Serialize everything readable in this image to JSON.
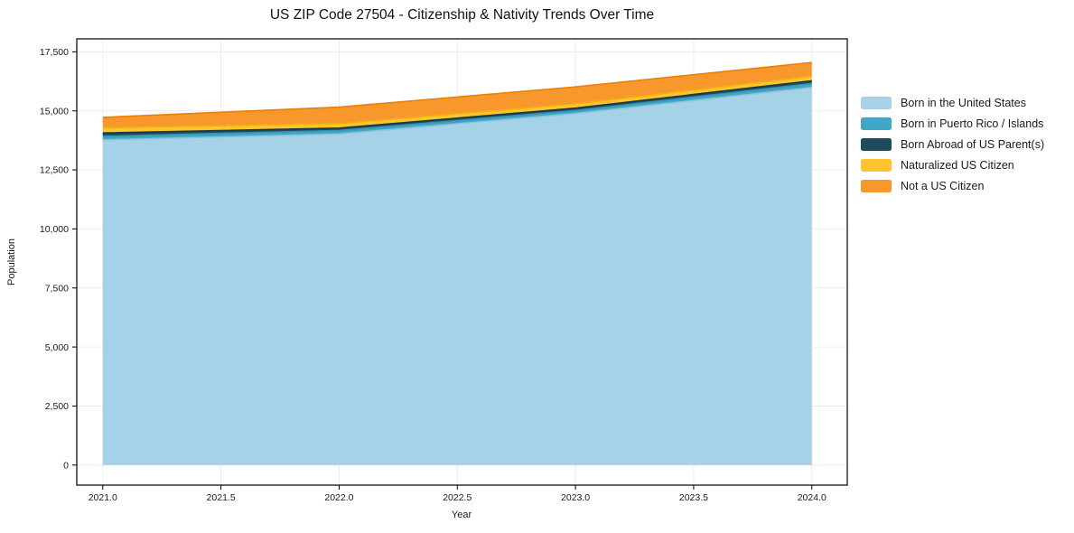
{
  "chart_data": {
    "type": "area",
    "stacked": true,
    "title": "US ZIP Code 27504 - Citizenship & Nativity Trends Over Time",
    "xlabel": "Year",
    "ylabel": "Population",
    "x": [
      2021,
      2022,
      2023,
      2024
    ],
    "series": [
      {
        "name": "Born in the United States",
        "color": "#a6d2e7",
        "edge": "#8fc3dc",
        "values": [
          13770,
          14020,
          14885,
          15990
        ]
      },
      {
        "name": "Born in Puerto Rico / Islands",
        "color": "#40a6c5",
        "edge": "#3493b1",
        "values": [
          155,
          150,
          130,
          170
        ]
      },
      {
        "name": "Born Abroad of US Parent(s)",
        "color": "#1f4a5e",
        "edge": "#16394a",
        "values": [
          140,
          100,
          100,
          115
        ]
      },
      {
        "name": "Naturalized US Citizen",
        "color": "#fdc430",
        "edge": "#efb30f",
        "values": [
          215,
          190,
          180,
          190
        ]
      },
      {
        "name": "Not a US Citizen",
        "color": "#f8982c",
        "edge": "#e98108",
        "values": [
          445,
          700,
          720,
          585
        ]
      }
    ],
    "totals": [
      14725,
      15160,
      16015,
      17050
    ],
    "x_ticks": [
      2021.0,
      2021.5,
      2022.0,
      2022.5,
      2023.0,
      2023.5,
      2024.0
    ],
    "y_ticks": [
      0,
      2500,
      5000,
      7500,
      10000,
      12500,
      15000,
      17500
    ],
    "xlim": [
      2020.89,
      2024.15
    ],
    "ylim": [
      -850,
      18050
    ],
    "grid": true,
    "grid_color": "#ececec",
    "spine_color": "#000000",
    "tick_text_color": "#191919",
    "background": "#ffffff",
    "legend_position": "right",
    "legend_frame": false
  }
}
